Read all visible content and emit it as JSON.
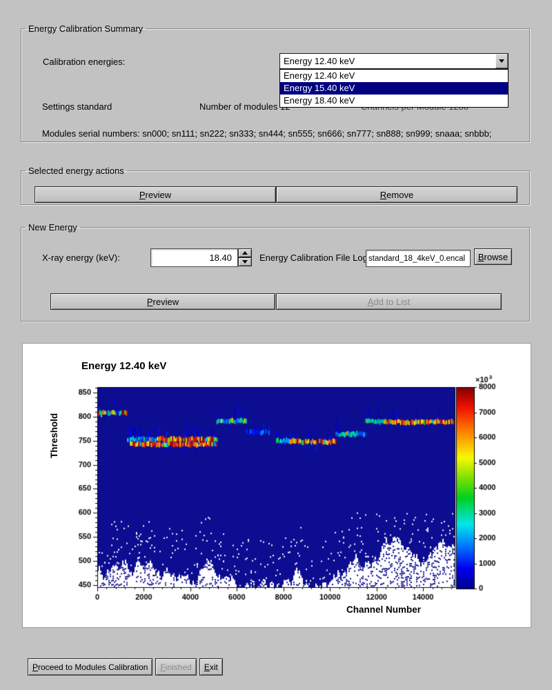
{
  "summary": {
    "legend": "Energy Calibration Summary",
    "calibration_energies_label": "Calibration energies:",
    "combo": {
      "value": "Energy 12.40 keV"
    },
    "dropdown": {
      "options": [
        "Energy 12.40 keV",
        "Energy 15.40 keV",
        "Energy 18.40 keV"
      ],
      "highlighted_index": 1
    },
    "settings_label": "Settings standard",
    "modules_label": "Number of modules 12",
    "channels_label": "Channels per Module 1280",
    "serials": "Modules serial numbers: sn000; sn111; sn222; sn333; sn444; sn555; sn666; sn777; sn888; sn999; snaaa; snbbb;"
  },
  "selected_actions": {
    "legend": "Selected energy actions",
    "preview": {
      "key": "P",
      "rest": "review"
    },
    "remove": {
      "key": "R",
      "rest": "emove"
    }
  },
  "new_energy": {
    "legend": "New Energy",
    "xray_label": "X-ray energy (keV):",
    "energy_value": "18.40",
    "file_log_label": "Energy Calibration File Log",
    "file_value": "standard_18_4keV_0.encal",
    "browse": {
      "key": "B",
      "rest": "rowse"
    },
    "preview": {
      "key": "P",
      "rest": "review"
    },
    "add_to_list": {
      "key": "A",
      "rest": "dd to List"
    }
  },
  "footer": {
    "proceed": {
      "key": "P",
      "rest": "roceed to Modules Calibration"
    },
    "finished": {
      "key": "F",
      "rest": "inished"
    },
    "exit": {
      "key": "E",
      "rest": "xit"
    }
  },
  "chart_data": {
    "type": "heatmap",
    "title": "Energy 12.40 keV",
    "xlabel": "Channel Number",
    "ylabel": "Threshold",
    "xlim": [
      0,
      15360
    ],
    "ylim": [
      445,
      862
    ],
    "xticks": [
      0,
      2000,
      4000,
      6000,
      8000,
      10000,
      12000,
      14000
    ],
    "yticks": [
      450,
      500,
      550,
      600,
      650,
      700,
      750,
      800,
      850
    ],
    "background_color": "#0d0d91",
    "colorbar": {
      "ticks": [
        0,
        1000,
        2000,
        3000,
        4000,
        5000,
        6000,
        7000,
        8000
      ],
      "multiplier": "×10",
      "exponent": "3",
      "palette": [
        {
          "pos": 0.0,
          "color": "#00008c"
        },
        {
          "pos": 0.1,
          "color": "#0000f0"
        },
        {
          "pos": 0.22,
          "color": "#0080ff"
        },
        {
          "pos": 0.32,
          "color": "#00e8e8"
        },
        {
          "pos": 0.45,
          "color": "#00d020"
        },
        {
          "pos": 0.55,
          "color": "#80e000"
        },
        {
          "pos": 0.65,
          "color": "#f8f800"
        },
        {
          "pos": 0.78,
          "color": "#ff8000"
        },
        {
          "pos": 0.9,
          "color": "#f01000"
        },
        {
          "pos": 1.0,
          "color": "#800000"
        }
      ]
    },
    "bands": [
      {
        "ch0": 40,
        "ch1": 1280,
        "threshold": 808,
        "intensity": "mixed"
      },
      {
        "ch0": 1280,
        "ch1": 2560,
        "threshold": 753,
        "intensity": "cool"
      },
      {
        "ch0": 1400,
        "ch1": 5100,
        "threshold": 743,
        "intensity": "hot"
      },
      {
        "ch0": 2560,
        "ch1": 5120,
        "threshold": 753,
        "intensity": "hot"
      },
      {
        "ch0": 5120,
        "ch1": 6400,
        "threshold": 791,
        "intensity": "cool"
      },
      {
        "ch0": 6400,
        "ch1": 7400,
        "threshold": 768,
        "intensity": "low"
      },
      {
        "ch0": 7680,
        "ch1": 8400,
        "threshold": 750,
        "intensity": "cool"
      },
      {
        "ch0": 8400,
        "ch1": 10240,
        "threshold": 748,
        "intensity": "hot"
      },
      {
        "ch0": 10240,
        "ch1": 11520,
        "threshold": 764,
        "intensity": "cool"
      },
      {
        "ch0": 11520,
        "ch1": 12300,
        "threshold": 790,
        "intensity": "cool"
      },
      {
        "ch0": 12300,
        "ch1": 15360,
        "threshold": 789,
        "intensity": "hot"
      }
    ]
  }
}
